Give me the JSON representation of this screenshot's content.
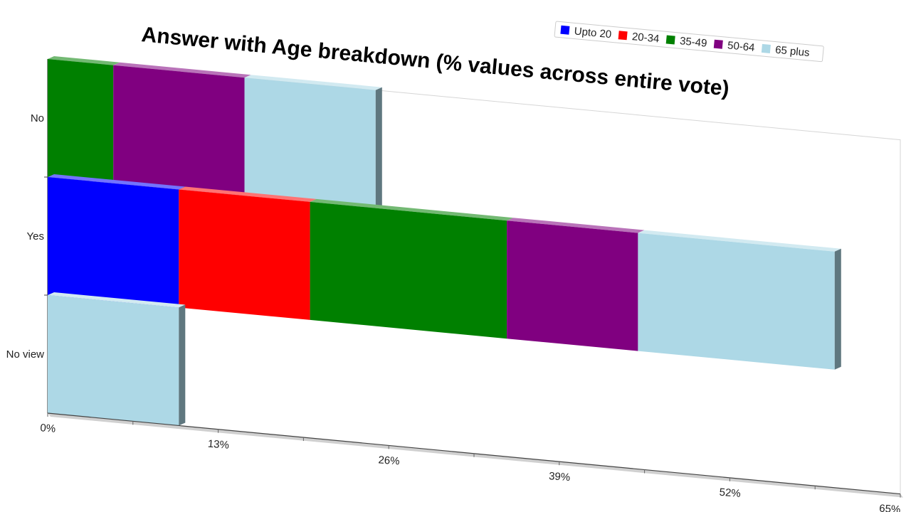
{
  "chart_data": {
    "type": "bar",
    "orientation": "horizontal",
    "stacked": true,
    "title": "Answer with Age breakdown (% values across entire vote)",
    "categories": [
      "No",
      "Yes",
      "No view"
    ],
    "series": [
      {
        "name": "Upto 20",
        "color": "#0000ff",
        "values": [
          0,
          10,
          0
        ]
      },
      {
        "name": "20-34",
        "color": "#ff0000",
        "values": [
          0,
          10,
          0
        ]
      },
      {
        "name": "35-49",
        "color": "#008000",
        "values": [
          5,
          15,
          0
        ]
      },
      {
        "name": "50-64",
        "color": "#800080",
        "values": [
          10,
          10,
          0
        ]
      },
      {
        "name": "65 plus",
        "color": "#add8e6",
        "values": [
          10,
          15,
          10
        ]
      }
    ],
    "x_ticks": [
      "0%",
      "13%",
      "26%",
      "39%",
      "52%",
      "65%"
    ],
    "xlim": [
      0,
      65
    ],
    "legend_position": "top-right"
  }
}
